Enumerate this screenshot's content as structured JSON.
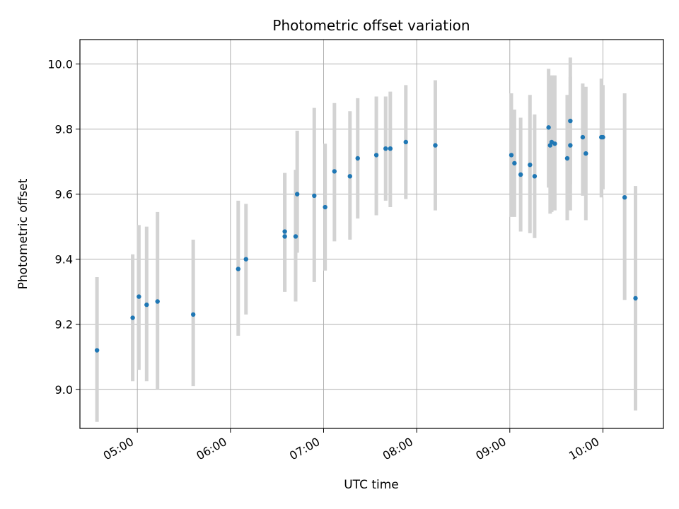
{
  "chart_data": {
    "type": "scatter",
    "title": "Photometric offset variation",
    "xlabel": "UTC time",
    "ylabel": "Photometric offset",
    "x_axis_type": "time",
    "xlim": [
      "04:23",
      "10:39"
    ],
    "ylim": [
      8.88,
      10.075
    ],
    "x_ticks": [
      "05:00",
      "06:00",
      "07:00",
      "08:00",
      "09:00",
      "10:00"
    ],
    "y_ticks": [
      9.0,
      9.2,
      9.4,
      9.6,
      9.8,
      10.0
    ],
    "y_tick_labels": [
      "9.0",
      "9.2",
      "9.4",
      "9.6",
      "9.8",
      "10.0"
    ],
    "grid": true,
    "marker_color": "#1f77b4",
    "errorbar_color": "#d3d3d3",
    "points": [
      {
        "x": "04:34",
        "y": 9.12,
        "ylow": 8.9,
        "yhigh": 9.345
      },
      {
        "x": "04:57",
        "y": 9.22,
        "ylow": 9.025,
        "yhigh": 9.415
      },
      {
        "x": "05:01",
        "y": 9.285,
        "ylow": 9.06,
        "yhigh": 9.505
      },
      {
        "x": "05:06",
        "y": 9.26,
        "ylow": 9.025,
        "yhigh": 9.5
      },
      {
        "x": "05:13",
        "y": 9.27,
        "ylow": 9.0,
        "yhigh": 9.545
      },
      {
        "x": "05:36",
        "y": 9.23,
        "ylow": 9.01,
        "yhigh": 9.46
      },
      {
        "x": "06:05",
        "y": 9.37,
        "ylow": 9.165,
        "yhigh": 9.58
      },
      {
        "x": "06:10",
        "y": 9.4,
        "ylow": 9.23,
        "yhigh": 9.57
      },
      {
        "x": "06:35",
        "y": 9.485,
        "ylow": 9.3,
        "yhigh": 9.665
      },
      {
        "x": "06:35",
        "y": 9.47,
        "ylow": 9.3,
        "yhigh": 9.665
      },
      {
        "x": "06:42",
        "y": 9.47,
        "ylow": 9.27,
        "yhigh": 9.675
      },
      {
        "x": "06:43",
        "y": 9.6,
        "ylow": 9.42,
        "yhigh": 9.795
      },
      {
        "x": "06:54",
        "y": 9.595,
        "ylow": 9.33,
        "yhigh": 9.865
      },
      {
        "x": "07:01",
        "y": 9.56,
        "ylow": 9.365,
        "yhigh": 9.755
      },
      {
        "x": "07:07",
        "y": 9.67,
        "ylow": 9.455,
        "yhigh": 9.88
      },
      {
        "x": "07:17",
        "y": 9.655,
        "ylow": 9.46,
        "yhigh": 9.855
      },
      {
        "x": "07:22",
        "y": 9.71,
        "ylow": 9.525,
        "yhigh": 9.895
      },
      {
        "x": "07:34",
        "y": 9.72,
        "ylow": 9.535,
        "yhigh": 9.9
      },
      {
        "x": "07:40",
        "y": 9.74,
        "ylow": 9.58,
        "yhigh": 9.9
      },
      {
        "x": "07:43",
        "y": 9.74,
        "ylow": 9.56,
        "yhigh": 9.915
      },
      {
        "x": "07:53",
        "y": 9.76,
        "ylow": 9.585,
        "yhigh": 9.935
      },
      {
        "x": "08:12",
        "y": 9.75,
        "ylow": 9.55,
        "yhigh": 9.95
      },
      {
        "x": "09:01",
        "y": 9.72,
        "ylow": 9.53,
        "yhigh": 9.91
      },
      {
        "x": "09:03",
        "y": 9.695,
        "ylow": 9.53,
        "yhigh": 9.86
      },
      {
        "x": "09:07",
        "y": 9.66,
        "ylow": 9.485,
        "yhigh": 9.835
      },
      {
        "x": "09:13",
        "y": 9.69,
        "ylow": 9.48,
        "yhigh": 9.905
      },
      {
        "x": "09:16",
        "y": 9.655,
        "ylow": 9.465,
        "yhigh": 9.845
      },
      {
        "x": "09:25",
        "y": 9.805,
        "ylow": 9.62,
        "yhigh": 9.985
      },
      {
        "x": "09:26",
        "y": 9.75,
        "ylow": 9.54,
        "yhigh": 9.96
      },
      {
        "x": "09:27",
        "y": 9.76,
        "ylow": 9.545,
        "yhigh": 9.965
      },
      {
        "x": "09:29",
        "y": 9.755,
        "ylow": 9.55,
        "yhigh": 9.965
      },
      {
        "x": "09:37",
        "y": 9.71,
        "ylow": 9.52,
        "yhigh": 9.905
      },
      {
        "x": "09:39",
        "y": 9.825,
        "ylow": 9.63,
        "yhigh": 10.02
      },
      {
        "x": "09:39",
        "y": 9.75,
        "ylow": 9.55,
        "yhigh": 9.96
      },
      {
        "x": "09:47",
        "y": 9.775,
        "ylow": 9.595,
        "yhigh": 9.94
      },
      {
        "x": "09:49",
        "y": 9.725,
        "ylow": 9.52,
        "yhigh": 9.93
      },
      {
        "x": "09:59",
        "y": 9.775,
        "ylow": 9.59,
        "yhigh": 9.955
      },
      {
        "x": "10:00",
        "y": 9.775,
        "ylow": 9.615,
        "yhigh": 9.935
      },
      {
        "x": "10:14",
        "y": 9.59,
        "ylow": 9.275,
        "yhigh": 9.91
      },
      {
        "x": "10:21",
        "y": 9.28,
        "ylow": 8.935,
        "yhigh": 9.625
      }
    ]
  }
}
